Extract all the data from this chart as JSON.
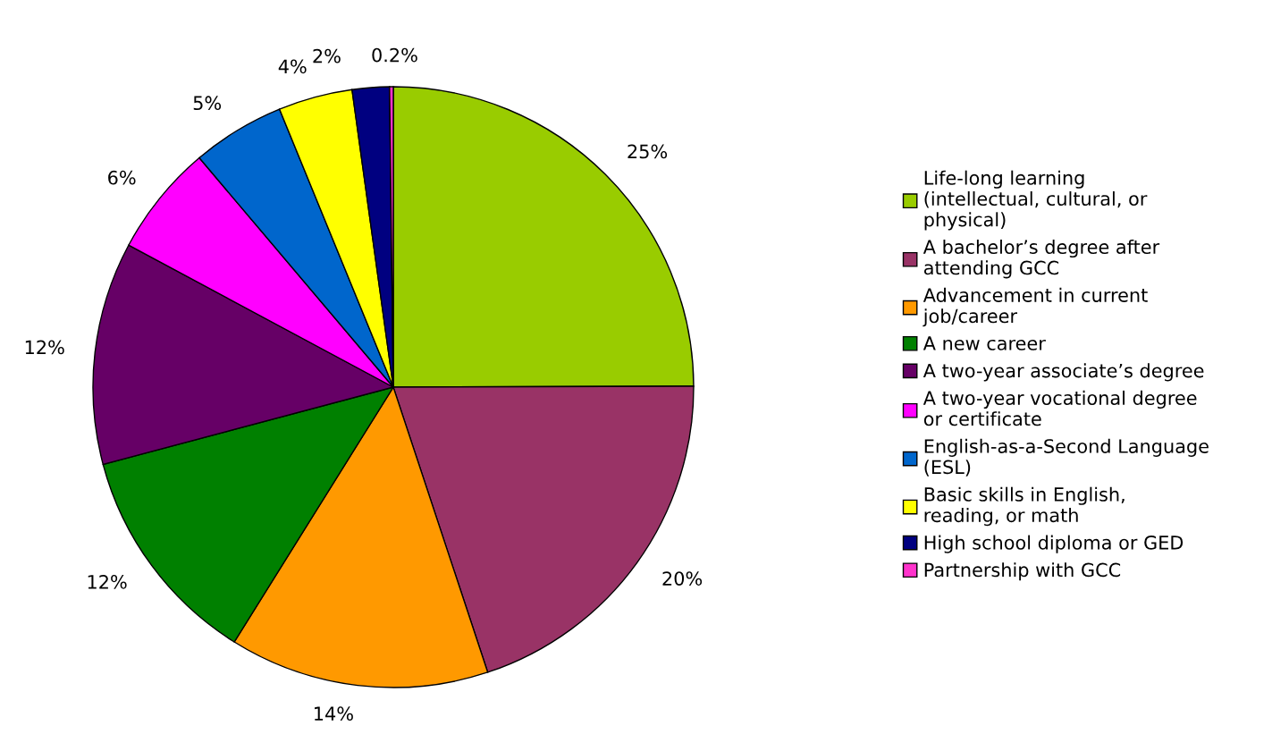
{
  "chart_data": {
    "type": "pie",
    "categories": [
      "Life-long learning (intellectual, cultural, or physical)",
      "A bachelor’s degree after attending GCC",
      "Advancement in current job/career",
      "A new career",
      "A two-year associate’s degree",
      "A two-year vocational degree or certificate",
      "English-as-a-Second Language (ESL)",
      "Basic skills in English, reading, or math",
      "High school diploma or GED",
      "Partnership with GCC"
    ],
    "values": [
      25,
      20,
      14,
      12,
      12,
      6,
      5,
      4,
      2,
      0.2
    ],
    "value_labels": [
      "25%",
      "20%",
      "14%",
      "12%",
      "12%",
      "6%",
      "5%",
      "4%",
      "2%",
      "0.2%"
    ],
    "colors": [
      "#99cc00",
      "#993366",
      "#ff9900",
      "#008000",
      "#660066",
      "#ff00ff",
      "#0066cc",
      "#ffff00",
      "#000080",
      "#ff33cc"
    ],
    "legend": "right"
  }
}
